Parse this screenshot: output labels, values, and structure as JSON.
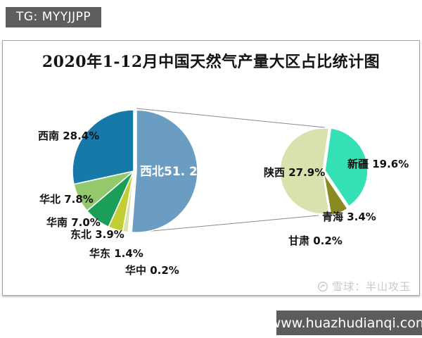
{
  "badge": {
    "text": "TG: MYYJJPP"
  },
  "watermark": {
    "brand": "雪球",
    "text": "雪球：半山攻玉"
  },
  "footer": {
    "url": "www.huazhudianqi.com"
  },
  "chart_data": {
    "type": "pie",
    "subtype": "pie-of-pie",
    "title": "2020年1-12月中国天然气产量大区占比统计图",
    "unit": "%",
    "legend_position": "none",
    "main_pie": {
      "description": "China natural gas output share by macro-region, Jan-Dec 2020",
      "slices": [
        {
          "id": "xibei",
          "label": "西北",
          "value": 51.2,
          "display": "西北51. 2%",
          "color": "#6B9DC3"
        },
        {
          "id": "huazhong",
          "label": "华中",
          "value": 0.2,
          "display": "华中 0.2%",
          "color": "#9FAE56"
        },
        {
          "id": "huadong",
          "label": "华东",
          "value": 1.4,
          "display": "华东 1.4%",
          "color": "#D8E2AB"
        },
        {
          "id": "dongbei",
          "label": "东北",
          "value": 3.9,
          "display": "东北 3.9%",
          "color": "#C2CE33"
        },
        {
          "id": "huanan",
          "label": "华南",
          "value": 7.0,
          "display": "华南 7.0%",
          "color": "#1B9E57"
        },
        {
          "id": "huabei",
          "label": "华北",
          "value": 7.8,
          "display": "华北 7.8%",
          "color": "#93C96C"
        },
        {
          "id": "xinan",
          "label": "西南",
          "value": 28.4,
          "display": "西南 28.4%",
          "color": "#1779A7"
        }
      ]
    },
    "secondary_pie": {
      "parent_slice": "西北",
      "description": "Breakdown of the Northwest (西北) slice by province",
      "slices": [
        {
          "id": "xinjiang",
          "label": "新疆",
          "value": 19.6,
          "display": "新疆 19.6%",
          "color": "#35E0B5"
        },
        {
          "id": "qinghai",
          "label": "青海",
          "value": 3.4,
          "display": "青海 3.4%",
          "color": "#8A8A21"
        },
        {
          "id": "gansu",
          "label": "甘肃",
          "value": 0.2,
          "display": "甘肃 0.2%",
          "color": "#E3E7C9"
        },
        {
          "id": "shanxi",
          "label": "陕西",
          "value": 27.9,
          "display": "陕西 27.9%",
          "color": "#D9E2AE"
        }
      ]
    }
  }
}
